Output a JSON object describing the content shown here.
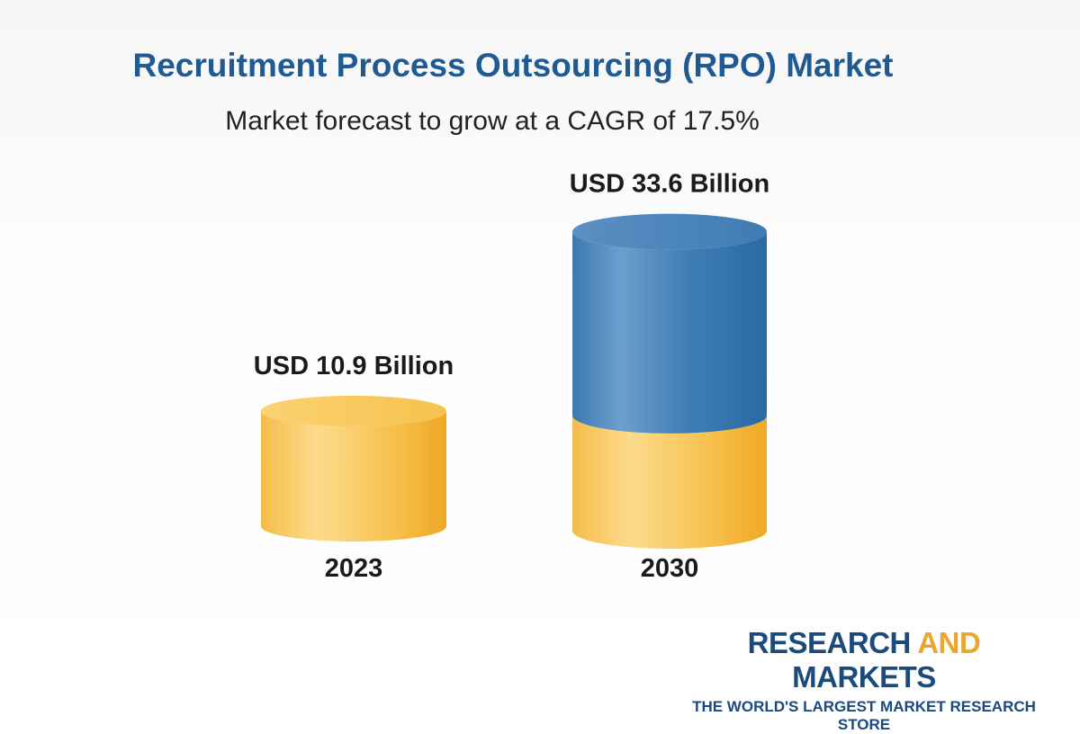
{
  "header": {
    "title": "Recruitment Process Outsourcing (RPO) Market",
    "subtitle": "Market forecast to grow at a CAGR of 17.5%"
  },
  "chart_data": {
    "type": "bar",
    "style": "3d-cylinder",
    "categories": [
      "2023",
      "2030"
    ],
    "values": [
      10.9,
      33.6
    ],
    "unit": "USD Billion",
    "data_labels": [
      "USD 10.9 Billion",
      "USD 33.6 Billion"
    ],
    "title": "Recruitment Process Outsourcing (RPO) Market",
    "subtitle": "Market forecast to grow at a CAGR of 17.5%",
    "xlabel": "",
    "ylabel": "",
    "grid": false,
    "colors": {
      "base": "#f5b83a",
      "growth": "#3473ab"
    }
  },
  "logo": {
    "word1": "RESEARCH",
    "word2": "AND",
    "word3": "MARKETS",
    "tagline": "THE WORLD'S LARGEST MARKET RESEARCH STORE"
  }
}
